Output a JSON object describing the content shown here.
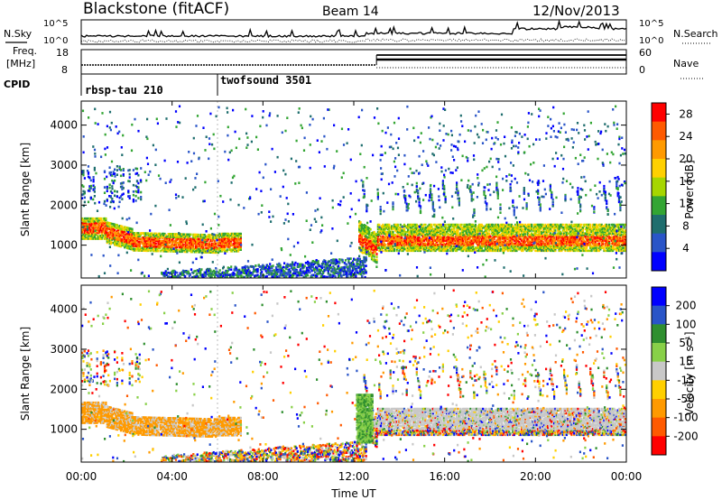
{
  "header": {
    "station": "Blackstone (fitACF)",
    "beam": "Beam 14",
    "date": "12/Nov/2013"
  },
  "noise_panel": {
    "left_label": "N.Sky",
    "right_label": "N.Search",
    "y_ticks": [
      "10^5",
      "10^0"
    ]
  },
  "freq_panel": {
    "left_label_1": "Freq.",
    "left_label_2": "[MHz]",
    "right_label": "Nave",
    "left_ticks": [
      "18",
      "8"
    ],
    "right_ticks": [
      "60",
      "0"
    ]
  },
  "cpid_panel": {
    "label": "CPID",
    "programs": [
      {
        "name": "rbsp-tau 210",
        "start_hour": 0
      },
      {
        "name": "twofsound 3501",
        "start_hour": 6
      }
    ]
  },
  "colors": {
    "power": [
      "#0000ff",
      "#2a55c8",
      "#1f6e6e",
      "#33a533",
      "#a6d600",
      "#ffd000",
      "#ff9a00",
      "#ff5a00",
      "#ff0000"
    ],
    "velocity": [
      "#ff0000",
      "#ff5a00",
      "#ff9a00",
      "#ffd000",
      "#c8c8c8",
      "#88d048",
      "#2f8f2f",
      "#2a55c8",
      "#0000ff"
    ]
  },
  "chart_data": [
    {
      "type": "heatmap",
      "title": "",
      "xlabel": "Time UT",
      "ylabel": "Slant Range [km]",
      "x_ticks": [
        "00:00",
        "04:00",
        "08:00",
        "12:00",
        "16:00",
        "20:00",
        "00:00"
      ],
      "xlim": [
        0,
        24
      ],
      "ylim": [
        180,
        4600
      ],
      "y_ticks": [
        1000,
        2000,
        3000,
        4000
      ],
      "colorbar": {
        "label": "Power [dB]",
        "ticks": [
          "4",
          "8",
          "12",
          "16",
          "20",
          "24",
          "28"
        ],
        "range": [
          0,
          30
        ]
      }
    },
    {
      "type": "heatmap",
      "title": "",
      "xlabel": "Time UT",
      "ylabel": "Slant Range [km]",
      "x_ticks": [
        "00:00",
        "04:00",
        "08:00",
        "12:00",
        "16:00",
        "20:00",
        "00:00"
      ],
      "xlim": [
        0,
        24
      ],
      "ylim": [
        180,
        4600
      ],
      "y_ticks": [
        1000,
        2000,
        3000,
        4000
      ],
      "colorbar": {
        "label": "Velocity [m s⁻¹]",
        "ticks": [
          "-200",
          "-100",
          "-50",
          "-15",
          "15",
          "50",
          "100",
          "200"
        ],
        "range": [
          -250,
          250
        ]
      }
    }
  ]
}
